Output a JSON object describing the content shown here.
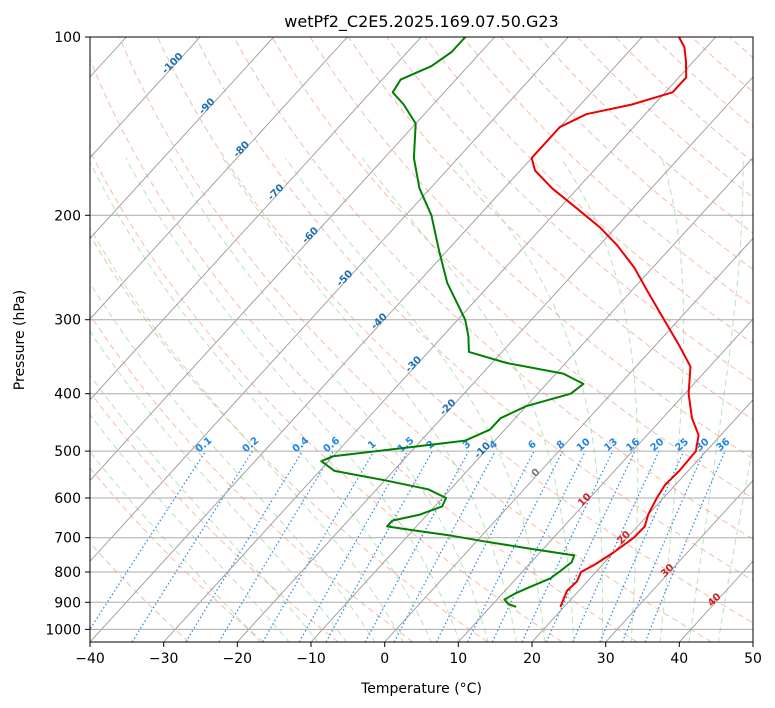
{
  "chart_data": {
    "type": "line",
    "subtype": "skew-t log-p",
    "title": "wetPf2_C2E5.2025.169.07.50.G23",
    "xlabel": "Temperature (°C)",
    "ylabel": "Pressure (hPa)",
    "xlim": [
      -40,
      50
    ],
    "ylim": [
      1050,
      100
    ],
    "y_scale": "log",
    "x_ticks": [
      -40,
      -30,
      -20,
      -10,
      0,
      10,
      20,
      30,
      40,
      50
    ],
    "y_ticks": [
      100,
      200,
      300,
      400,
      500,
      600,
      700,
      800,
      900,
      1000
    ],
    "grid": true,
    "colors": {
      "temperature": "#ee0000",
      "dewpoint": "#008000",
      "isotherm": "#999999",
      "dry_adiabat": "#f4a080",
      "moist_adiabat": "#8ccf8c",
      "mixing_ratio": "#1e88e5",
      "mixing_ratio_label": "#1e88e5",
      "isotherm_label": "#1f6fb0",
      "theta_label": "#cc2222"
    },
    "isotherm_labels": [
      "-100",
      "-90",
      "-80",
      "-70",
      "-60",
      "-50",
      "-40",
      "-30",
      "-20",
      "-10",
      "0",
      "10",
      "20",
      "30",
      "40"
    ],
    "mixing_ratio_labels": [
      "0.1",
      "0.2",
      "0.4",
      "0.6",
      "1",
      "1.5",
      "2",
      "3",
      "4",
      "6",
      "8",
      "10",
      "13",
      "16",
      "20",
      "25",
      "30",
      "36"
    ],
    "series": [
      {
        "role": "temperature",
        "points": [
          {
            "p": 916,
            "t": 19.5
          },
          {
            "p": 890,
            "t": 19.0
          },
          {
            "p": 860,
            "t": 18.4
          },
          {
            "p": 830,
            "t": 18.6
          },
          {
            "p": 800,
            "t": 18.0
          },
          {
            "p": 775,
            "t": 19.0
          },
          {
            "p": 740,
            "t": 20.0
          },
          {
            "p": 700,
            "t": 20.9
          },
          {
            "p": 670,
            "t": 21.0
          },
          {
            "p": 640,
            "t": 20.0
          },
          {
            "p": 600,
            "t": 19.1
          },
          {
            "p": 570,
            "t": 18.6
          },
          {
            "p": 540,
            "t": 18.8
          },
          {
            "p": 500,
            "t": 18.6
          },
          {
            "p": 470,
            "t": 17.0
          },
          {
            "p": 440,
            "t": 14.0
          },
          {
            "p": 400,
            "t": 10.5
          },
          {
            "p": 360,
            "t": 7.4
          },
          {
            "p": 330,
            "t": 3.0
          },
          {
            "p": 300,
            "t": -2.0
          },
          {
            "p": 270,
            "t": -7.5
          },
          {
            "p": 245,
            "t": -12.5
          },
          {
            "p": 225,
            "t": -17.5
          },
          {
            "p": 210,
            "t": -22.0
          },
          {
            "p": 195,
            "t": -27.5
          },
          {
            "p": 180,
            "t": -33.5
          },
          {
            "p": 168,
            "t": -38.0
          },
          {
            "p": 160,
            "t": -40.0
          },
          {
            "p": 150,
            "t": -40.0
          },
          {
            "p": 142,
            "t": -40.0
          },
          {
            "p": 135,
            "t": -38.0
          },
          {
            "p": 130,
            "t": -33.0
          },
          {
            "p": 124,
            "t": -29.0
          },
          {
            "p": 117,
            "t": -29.0
          },
          {
            "p": 110,
            "t": -31.0
          },
          {
            "p": 104,
            "t": -33.0
          },
          {
            "p": 100,
            "t": -35.0
          }
        ]
      },
      {
        "role": "dewpoint",
        "points": [
          {
            "p": 916,
            "t": 13.5
          },
          {
            "p": 905,
            "t": 12.0
          },
          {
            "p": 890,
            "t": 11.0
          },
          {
            "p": 870,
            "t": 11.7
          },
          {
            "p": 850,
            "t": 12.8
          },
          {
            "p": 820,
            "t": 14.6
          },
          {
            "p": 800,
            "t": 15.0
          },
          {
            "p": 770,
            "t": 15.5
          },
          {
            "p": 750,
            "t": 15.0
          },
          {
            "p": 730,
            "t": 8.0
          },
          {
            "p": 710,
            "t": 1.0
          },
          {
            "p": 695,
            "t": -4.0
          },
          {
            "p": 680,
            "t": -10.0
          },
          {
            "p": 670,
            "t": -14.0
          },
          {
            "p": 655,
            "t": -14.0
          },
          {
            "p": 640,
            "t": -11.0
          },
          {
            "p": 620,
            "t": -9.0
          },
          {
            "p": 600,
            "t": -9.5
          },
          {
            "p": 580,
            "t": -13.0
          },
          {
            "p": 560,
            "t": -20.0
          },
          {
            "p": 540,
            "t": -28.0
          },
          {
            "p": 520,
            "t": -31.0
          },
          {
            "p": 510,
            "t": -30.0
          },
          {
            "p": 495,
            "t": -22.0
          },
          {
            "p": 480,
            "t": -14.0
          },
          {
            "p": 460,
            "t": -12.0
          },
          {
            "p": 440,
            "t": -12.0
          },
          {
            "p": 420,
            "t": -10.0
          },
          {
            "p": 400,
            "t": -5.5
          },
          {
            "p": 385,
            "t": -5.0
          },
          {
            "p": 370,
            "t": -9.0
          },
          {
            "p": 355,
            "t": -18.0
          },
          {
            "p": 340,
            "t": -24.5
          },
          {
            "p": 320,
            "t": -26.5
          },
          {
            "p": 300,
            "t": -29.0
          },
          {
            "p": 260,
            "t": -36.0
          },
          {
            "p": 230,
            "t": -41.0
          },
          {
            "p": 200,
            "t": -46.5
          },
          {
            "p": 180,
            "t": -51.5
          },
          {
            "p": 160,
            "t": -56.0
          },
          {
            "p": 140,
            "t": -60.0
          },
          {
            "p": 130,
            "t": -64.0
          },
          {
            "p": 124,
            "t": -67.0
          },
          {
            "p": 118,
            "t": -67.5
          },
          {
            "p": 112,
            "t": -65.0
          },
          {
            "p": 106,
            "t": -64.0
          },
          {
            "p": 100,
            "t": -64.0
          }
        ]
      }
    ]
  }
}
